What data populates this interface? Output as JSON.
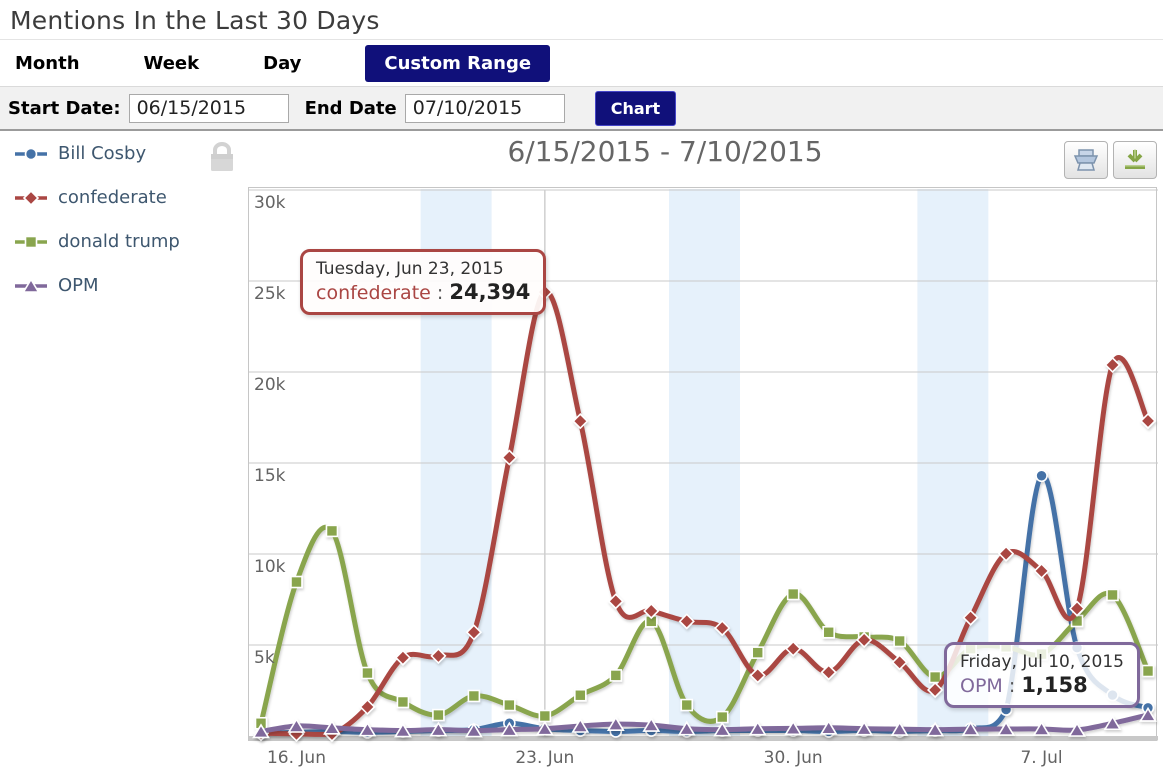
{
  "page": {
    "title": "Mentions In the Last 30 Days"
  },
  "tabs": {
    "month": "Month",
    "week": "Week",
    "day": "Day",
    "custom": "Custom Range"
  },
  "controls": {
    "start_label": "Start Date:",
    "start_value": "06/15/2015",
    "end_label": "End Date",
    "end_value": "07/10/2015",
    "chart_button": "Chart"
  },
  "legend": {
    "items": [
      {
        "label": "Bill Cosby",
        "color": "#4572A7",
        "marker": "circle"
      },
      {
        "label": "confederate",
        "color": "#AA4643",
        "marker": "diamond"
      },
      {
        "label": "donald trump",
        "color": "#89A54E",
        "marker": "square"
      },
      {
        "label": "OPM",
        "color": "#80699B",
        "marker": "triangle"
      }
    ],
    "lock_icon": "lock-icon"
  },
  "chart": {
    "title": "6/15/2015 - 7/10/2015",
    "toolbar": [
      "print-icon",
      "download-icon"
    ]
  },
  "chart_data": {
    "type": "line",
    "title": "6/15/2015 - 7/10/2015",
    "x": [
      "Jun 15",
      "Jun 16",
      "Jun 17",
      "Jun 18",
      "Jun 19",
      "Jun 20",
      "Jun 21",
      "Jun 22",
      "Jun 23",
      "Jun 24",
      "Jun 25",
      "Jun 26",
      "Jun 27",
      "Jun 28",
      "Jun 29",
      "Jun 30",
      "Jul 1",
      "Jul 2",
      "Jul 3",
      "Jul 4",
      "Jul 5",
      "Jul 6",
      "Jul 7",
      "Jul 8",
      "Jul 9",
      "Jul 10"
    ],
    "x_tick_labels": [
      {
        "index": 1,
        "label": "16. Jun"
      },
      {
        "index": 8,
        "label": "23. Jun"
      },
      {
        "index": 15,
        "label": "30. Jun"
      },
      {
        "index": 22,
        "label": "7. Jul"
      }
    ],
    "ylim": [
      0,
      30000
    ],
    "y_ticks": [
      {
        "label": "30k",
        "value": 30000
      },
      {
        "label": "25k",
        "value": 25000
      },
      {
        "label": "20k",
        "value": 20000
      },
      {
        "label": "15k",
        "value": 15000
      },
      {
        "label": "10k",
        "value": 10000
      },
      {
        "label": "5k",
        "value": 5000
      }
    ],
    "grid": true,
    "legend_position": "left",
    "series": [
      {
        "name": "Bill Cosby",
        "color": "#4572A7",
        "marker": "circle",
        "values": [
          150,
          200,
          250,
          200,
          250,
          300,
          350,
          700,
          400,
          300,
          250,
          300,
          250,
          300,
          300,
          300,
          250,
          300,
          250,
          300,
          400,
          1450,
          14300,
          4850,
          2250,
          1550
        ]
      },
      {
        "name": "confederate",
        "color": "#AA4643",
        "marker": "diamond",
        "values": [
          150,
          120,
          100,
          1600,
          4300,
          4400,
          5700,
          15300,
          24394,
          17300,
          7400,
          6870,
          6300,
          5930,
          3330,
          4800,
          3500,
          5280,
          4050,
          2530,
          6500,
          10020,
          9070,
          7000,
          20390,
          17310
        ]
      },
      {
        "name": "donald trump",
        "color": "#89A54E",
        "marker": "square",
        "values": [
          700,
          8460,
          11270,
          3460,
          1870,
          1150,
          2200,
          1700,
          1100,
          2240,
          3330,
          6300,
          1700,
          1040,
          4580,
          7800,
          5700,
          5440,
          5220,
          3240,
          4800,
          4900,
          4500,
          6320,
          7750,
          3570
        ]
      },
      {
        "name": "OPM",
        "color": "#80699B",
        "marker": "triangle",
        "values": [
          250,
          550,
          450,
          350,
          300,
          350,
          300,
          350,
          400,
          550,
          650,
          600,
          400,
          350,
          400,
          420,
          450,
          400,
          380,
          350,
          380,
          385,
          385,
          330,
          700,
          1158
        ]
      }
    ],
    "draw_order": [
      0,
      2,
      1,
      3
    ],
    "weekend_bands_day_ranges": [
      [
        4.5,
        6.5
      ],
      [
        11.5,
        13.5
      ],
      [
        18.5,
        20.5
      ]
    ],
    "band_color": "#E6F1FB",
    "crosshair_index": 8,
    "tooltips": [
      {
        "date_line": "Tuesday, Jun 23, 2015",
        "series": "confederate",
        "colon": ":",
        "value": "24,394",
        "color": "#AA4643"
      },
      {
        "date_line": "Friday, Jul 10, 2015",
        "series": "OPM",
        "colon": ":",
        "value": "1,158",
        "color": "#80699B"
      }
    ]
  }
}
